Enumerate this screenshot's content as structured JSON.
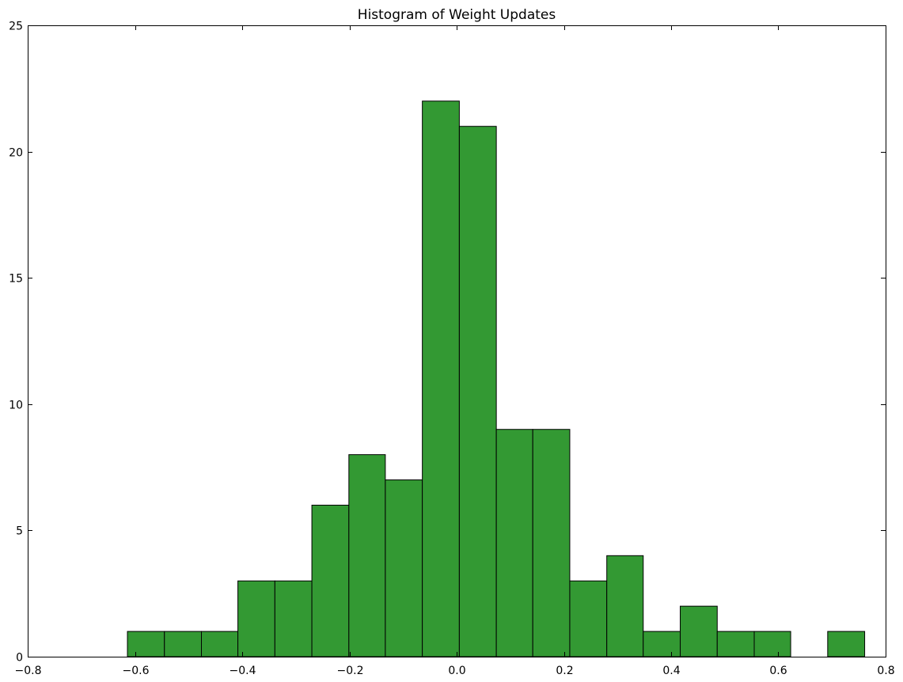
{
  "chart_data": {
    "type": "bar",
    "title": "Histogram of Weight Updates",
    "xlabel": "",
    "ylabel": "",
    "xlim": [
      -0.8,
      0.8
    ],
    "ylim": [
      0,
      25
    ],
    "x_ticks": [
      -0.8,
      -0.6,
      -0.4,
      -0.2,
      0.0,
      0.2,
      0.4,
      0.6,
      0.8
    ],
    "x_tick_labels": [
      "−0.8",
      "−0.6",
      "−0.4",
      "−0.2",
      "0.0",
      "0.2",
      "0.4",
      "0.6",
      "0.8"
    ],
    "y_ticks": [
      0,
      5,
      10,
      15,
      20,
      25
    ],
    "y_tick_labels": [
      "0",
      "5",
      "10",
      "15",
      "20",
      "25"
    ],
    "grid": false,
    "bar_color": "#339933",
    "edge_color": "#000000",
    "bins": [
      {
        "x0": -0.614,
        "x1": -0.545,
        "count": 1
      },
      {
        "x0": -0.545,
        "x1": -0.476,
        "count": 1
      },
      {
        "x0": -0.476,
        "x1": -0.408,
        "count": 1
      },
      {
        "x0": -0.408,
        "x1": -0.339,
        "count": 3
      },
      {
        "x0": -0.339,
        "x1": -0.27,
        "count": 3
      },
      {
        "x0": -0.27,
        "x1": -0.201,
        "count": 6
      },
      {
        "x0": -0.201,
        "x1": -0.133,
        "count": 8
      },
      {
        "x0": -0.133,
        "x1": -0.064,
        "count": 7
      },
      {
        "x0": -0.064,
        "x1": 0.005,
        "count": 22
      },
      {
        "x0": 0.005,
        "x1": 0.074,
        "count": 21
      },
      {
        "x0": 0.074,
        "x1": 0.142,
        "count": 9
      },
      {
        "x0": 0.142,
        "x1": 0.211,
        "count": 9
      },
      {
        "x0": 0.211,
        "x1": 0.28,
        "count": 3
      },
      {
        "x0": 0.28,
        "x1": 0.348,
        "count": 4
      },
      {
        "x0": 0.348,
        "x1": 0.417,
        "count": 1
      },
      {
        "x0": 0.417,
        "x1": 0.486,
        "count": 2
      },
      {
        "x0": 0.486,
        "x1": 0.555,
        "count": 1
      },
      {
        "x0": 0.555,
        "x1": 0.623,
        "count": 1
      },
      {
        "x0": 0.623,
        "x1": 0.692,
        "count": 0
      },
      {
        "x0": 0.692,
        "x1": 0.761,
        "count": 1
      }
    ]
  }
}
